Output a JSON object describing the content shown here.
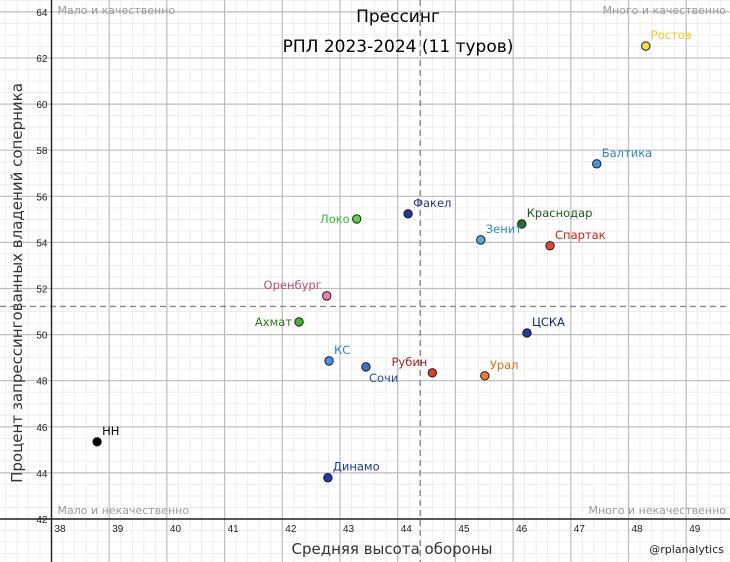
{
  "chart_data": {
    "type": "scatter",
    "title": "Прессинг",
    "subtitle": "РПЛ 2023-2024 (11 туров)",
    "xlabel": "Средняя высота обороны",
    "ylabel": "Процент запрессингованных владений соперника",
    "xlim": [
      37.9,
      49.65
    ],
    "ylim": [
      41.7,
      64.3
    ],
    "x_ticks": [
      38,
      39,
      40,
      41,
      42,
      43,
      44,
      45,
      46,
      47,
      48,
      49
    ],
    "y_ticks": [
      42,
      44,
      46,
      48,
      50,
      52,
      54,
      56,
      58,
      60,
      62,
      64
    ],
    "grid": true,
    "reference_lines": {
      "x_mean": 44.39,
      "y_mean": 51.22
    },
    "quadrant_labels": {
      "top_left": "Мало и качественно",
      "top_right": "Много и качественно",
      "bottom_left": "Мало и некачественно",
      "bottom_right": "Много и некачественно"
    },
    "points": [
      {
        "name": "Ростов",
        "x": 48.3,
        "y": 62.52,
        "color": "#f5e04a",
        "label_color": "#e8c82a",
        "label_pos": "upper-right"
      },
      {
        "name": "Балтика",
        "x": 47.45,
        "y": 57.41,
        "color": "#4a90e2",
        "label_color": "#2f86b8",
        "label_pos": "upper-right"
      },
      {
        "name": "Факел",
        "x": 44.18,
        "y": 55.24,
        "color": "#1f3a9a",
        "label_color": "#1f3a7a",
        "label_pos": "upper-right"
      },
      {
        "name": "Локо",
        "x": 43.29,
        "y": 55.02,
        "color": "#5cd04a",
        "label_color": "#3fae3a",
        "label_pos": "left"
      },
      {
        "name": "Краснодар",
        "x": 46.15,
        "y": 54.8,
        "color": "#2f6b2a",
        "label_color": "#1f5a1a",
        "label_pos": "upper-right"
      },
      {
        "name": "Зенит",
        "x": 45.44,
        "y": 54.11,
        "color": "#5aa8e0",
        "label_color": "#2f8ab8",
        "label_pos": "upper-right"
      },
      {
        "name": "Спартак",
        "x": 46.64,
        "y": 53.85,
        "color": "#e8452f",
        "label_color": "#c8201a",
        "label_pos": "upper-right"
      },
      {
        "name": "Оренбург",
        "x": 42.77,
        "y": 51.68,
        "color": "#ee7fae",
        "label_color": "#b8507a",
        "label_pos": "upper-left"
      },
      {
        "name": "Ахмат",
        "x": 42.29,
        "y": 50.55,
        "color": "#4caf3a",
        "label_color": "#2f7a1f",
        "label_pos": "left"
      },
      {
        "name": "ЦСКА",
        "x": 46.24,
        "y": 50.07,
        "color": "#1f3a9a",
        "label_color": "#0f2a6a",
        "label_pos": "upper-right"
      },
      {
        "name": "КС",
        "x": 42.81,
        "y": 48.86,
        "color": "#4a90e2",
        "label_color": "#2f86b8",
        "label_pos": "upper-right"
      },
      {
        "name": "Сочи",
        "x": 43.45,
        "y": 48.6,
        "color": "#3a6ec8",
        "label_color": "#1f4a9a",
        "label_pos": "lower-right"
      },
      {
        "name": "Рубин",
        "x": 44.6,
        "y": 48.34,
        "color": "#d8402a",
        "label_color": "#9a1f1a",
        "label_pos": "upper-left"
      },
      {
        "name": "Урал",
        "x": 45.51,
        "y": 48.21,
        "color": "#f07a30",
        "label_color": "#d0701a",
        "label_pos": "upper-right"
      },
      {
        "name": "НН",
        "x": 38.79,
        "y": 45.35,
        "color": "#000000",
        "label_color": "#000000",
        "label_pos": "upper-right"
      },
      {
        "name": "Динамо",
        "x": 42.79,
        "y": 43.79,
        "color": "#1f3ab8",
        "label_color": "#1f3a8a",
        "label_pos": "upper-right"
      }
    ]
  },
  "credit": "@rplanalytics"
}
